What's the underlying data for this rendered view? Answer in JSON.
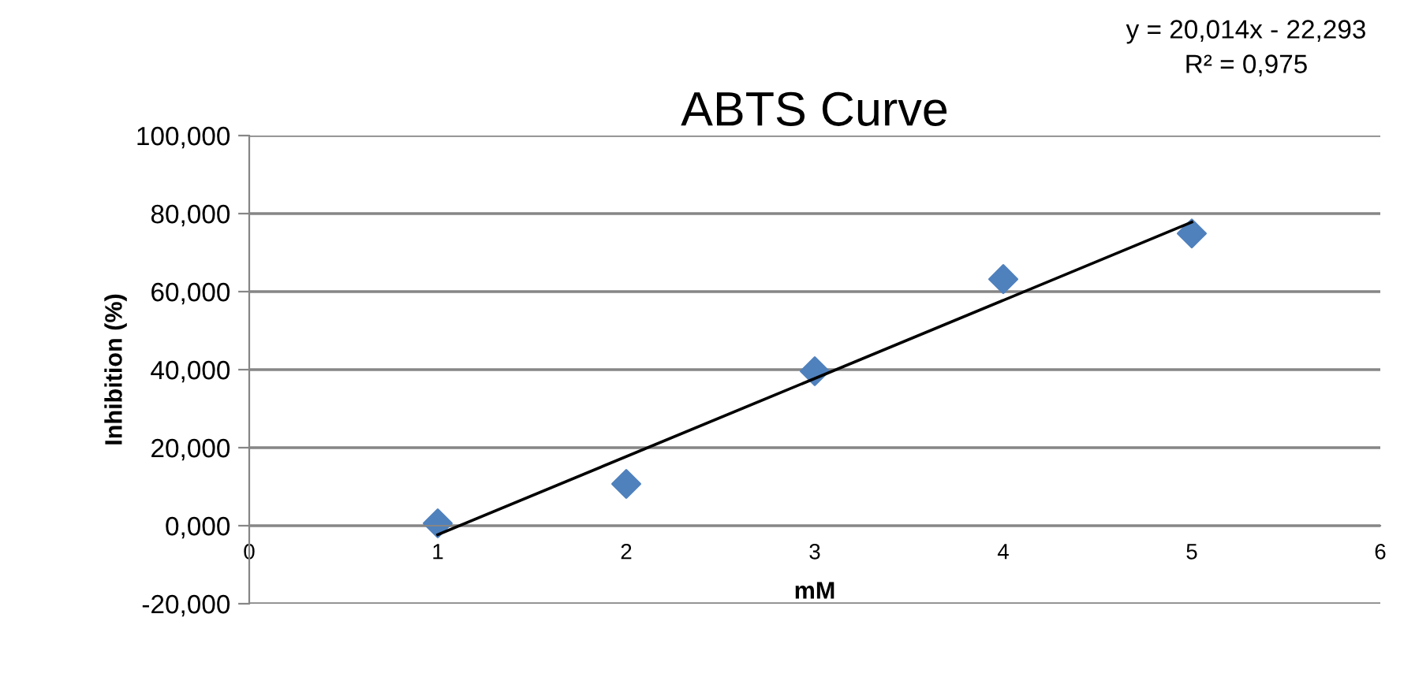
{
  "chart_data": {
    "type": "scatter",
    "title": "ABTS Curve",
    "xlabel": "mM",
    "ylabel": "Inhibition (%)",
    "annotations": [
      "y = 20,014x - 22,293",
      "R² = 0,975"
    ],
    "marker": "diamond",
    "grid": "y",
    "legend": false,
    "xlim": [
      0,
      6
    ],
    "xticks": [
      0,
      1,
      2,
      3,
      4,
      5,
      6
    ],
    "ylim": [
      -20,
      100
    ],
    "yticks": [
      {
        "value": -20,
        "label": "-20,000"
      },
      {
        "value": 0,
        "label": "0,000"
      },
      {
        "value": 20,
        "label": "20,000"
      },
      {
        "value": 40,
        "label": "40,000"
      },
      {
        "value": 60,
        "label": "60,000"
      },
      {
        "value": 80,
        "label": "80,000"
      },
      {
        "value": 100,
        "label": "100,000"
      }
    ],
    "series": [
      {
        "color": "#4f81bd",
        "x": [
          1,
          2,
          3,
          4,
          5
        ],
        "values": [
          0.6,
          10.7,
          39.6,
          63.2,
          74.9
        ]
      },
      {
        "type": "line",
        "marker": "none",
        "color": "#000000",
        "x": [
          1,
          5
        ],
        "values": [
          -2.3,
          77.8
        ]
      }
    ]
  }
}
